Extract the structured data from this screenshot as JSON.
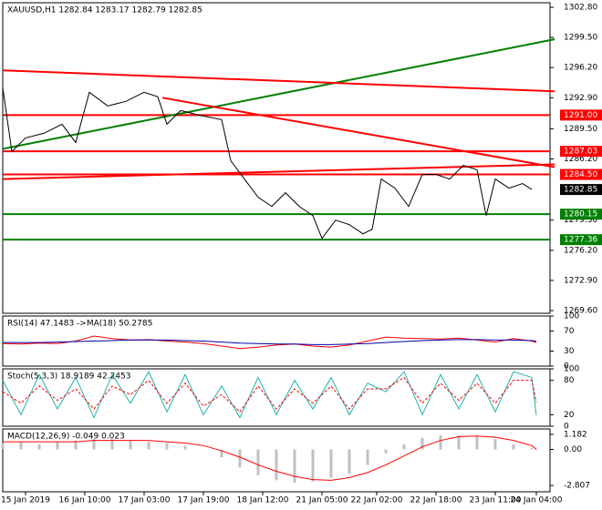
{
  "chart_data": [
    {
      "type": "line",
      "title": "XAUUSD,H1  1282.84 1283.17 1282.79 1282.85",
      "xlim": [
        0,
        120
      ],
      "xticks": [
        {
          "value": 5,
          "label": "15 Jan 2019"
        },
        {
          "value": 18,
          "label": "16 Jan 10:00"
        },
        {
          "value": 31,
          "label": "17 Jan 03:00"
        },
        {
          "value": 44,
          "label": "17 Jan 19:00"
        },
        {
          "value": 57,
          "label": "18 Jan 12:00"
        },
        {
          "value": 70,
          "label": "21 Jan 05:00"
        },
        {
          "value": 82,
          "label": "22 Jan 02:00"
        },
        {
          "value": 95,
          "label": "22 Jan 18:00"
        },
        {
          "value": 108,
          "label": "23 Jan 11:00"
        },
        {
          "value": 117,
          "label": "24 Jan 04:00"
        }
      ],
      "ylim": [
        1269.3,
        1303.3
      ],
      "yticks": [
        {
          "value": 1302.8,
          "label": "1302.80"
        },
        {
          "value": 1299.5,
          "label": "1299.50"
        },
        {
          "value": 1296.2,
          "label": "1296.20"
        },
        {
          "value": 1292.9,
          "label": "1292.90"
        },
        {
          "value": 1289.5,
          "label": "1289.50"
        },
        {
          "value": 1286.2,
          "label": "1286.20"
        },
        {
          "value": 1279.5,
          "label": "1279.50"
        },
        {
          "value": 1276.2,
          "label": "1276.20"
        },
        {
          "value": 1272.9,
          "label": "1272.90"
        },
        {
          "value": 1269.6,
          "label": "1269.60"
        }
      ],
      "series": [
        {
          "name": "Close",
          "color": "#000000",
          "x": [
            0,
            2,
            5,
            9,
            13,
            16,
            19,
            23,
            27,
            31,
            34,
            36,
            39,
            43,
            48,
            50,
            53,
            56,
            59,
            62,
            65,
            68,
            70,
            73,
            76,
            79,
            81,
            83,
            86,
            89,
            92,
            95,
            98,
            101,
            104,
            106,
            108,
            111,
            114,
            116
          ],
          "values": [
            1294,
            1287,
            1288.5,
            1289,
            1290,
            1288,
            1293.5,
            1292,
            1292.5,
            1293.5,
            1293,
            1290,
            1291.5,
            1291,
            1290.5,
            1286,
            1284,
            1282,
            1281,
            1282.5,
            1281,
            1280,
            1277.5,
            1279.5,
            1279,
            1278,
            1278.5,
            1284,
            1283,
            1281,
            1284.5,
            1284.5,
            1284,
            1285.5,
            1285,
            1280,
            1284,
            1283,
            1283.5,
            1282.85
          ]
        }
      ],
      "levels": [
        {
          "value": 1291,
          "label": "1291.00",
          "color": "#ff0000"
        },
        {
          "value": 1287.03,
          "label": "1287.03",
          "color": "#ff0000"
        },
        {
          "value": 1284.5,
          "label": "1284.50",
          "color": "#ff0000"
        },
        {
          "value": 1280.15,
          "label": "1280.15",
          "color": "#008000"
        },
        {
          "value": 1277.36,
          "label": "1277.36",
          "color": "#008000"
        }
      ],
      "trend_lines": [
        {
          "x": [
            0,
            121
          ],
          "y": [
            1287.3,
            1299.3
          ],
          "color": "#008000"
        },
        {
          "x": [
            0,
            121
          ],
          "y": [
            1295.9,
            1293.6
          ],
          "color": "#ff0000"
        },
        {
          "x": [
            35,
            121
          ],
          "y": [
            1292.9,
            1285.3
          ],
          "color": "#ff0000"
        },
        {
          "x": [
            0,
            121
          ],
          "y": [
            1284,
            1285.6
          ],
          "color": "#ff0000"
        }
      ],
      "last_price": {
        "value": 1282.85,
        "label": "1282.85"
      }
    },
    {
      "type": "oscillator",
      "title": "RSI(14) 47.1483 ->MA(18) 50.2785",
      "xlim": [
        0,
        120
      ],
      "ylim": [
        0,
        100
      ],
      "yticks": [
        100,
        70,
        30,
        0
      ],
      "series": [
        {
          "name": "RSI",
          "color": "#ff0000",
          "x": [
            0,
            4,
            8,
            12,
            16,
            20,
            24,
            28,
            32,
            36,
            40,
            44,
            48,
            52,
            56,
            60,
            64,
            68,
            72,
            76,
            80,
            84,
            88,
            92,
            96,
            100,
            104,
            108,
            112,
            116,
            117
          ],
          "values": [
            45,
            44,
            46,
            45,
            50,
            60,
            55,
            52,
            53,
            50,
            48,
            45,
            40,
            35,
            38,
            42,
            44,
            40,
            38,
            42,
            50,
            58,
            56,
            55,
            54,
            56,
            52,
            48,
            55,
            50,
            47
          ]
        },
        {
          "name": "MA",
          "color": "#0000aa",
          "x": [
            0,
            4,
            8,
            12,
            16,
            20,
            24,
            28,
            32,
            36,
            40,
            44,
            48,
            52,
            56,
            60,
            64,
            68,
            72,
            76,
            80,
            84,
            88,
            92,
            96,
            100,
            104,
            108,
            112,
            116,
            117
          ],
          "values": [
            47,
            47,
            47,
            48,
            49,
            50,
            51,
            52,
            52,
            52,
            51,
            50,
            48,
            46,
            45,
            44,
            44,
            43,
            43,
            44,
            45,
            47,
            49,
            51,
            52,
            53,
            53,
            52,
            52,
            51,
            50
          ]
        }
      ]
    },
    {
      "type": "oscillator",
      "title": "Stoch(5,3,3) 18.9189 42.2453",
      "xlim": [
        0,
        120
      ],
      "ylim": [
        0,
        100
      ],
      "yticks": [
        100,
        80,
        20,
        0
      ],
      "series": [
        {
          "name": "Main",
          "color": "#20b2aa",
          "x": [
            0,
            4,
            8,
            12,
            16,
            20,
            24,
            28,
            32,
            36,
            40,
            44,
            48,
            52,
            56,
            60,
            64,
            68,
            72,
            76,
            80,
            84,
            88,
            92,
            96,
            100,
            104,
            108,
            112,
            116,
            117
          ],
          "values": [
            80,
            20,
            90,
            30,
            85,
            15,
            90,
            40,
            95,
            25,
            90,
            20,
            70,
            15,
            85,
            20,
            80,
            30,
            85,
            20,
            75,
            60,
            95,
            20,
            90,
            30,
            90,
            25,
            95,
            85,
            19
          ]
        },
        {
          "name": "Signal",
          "color": "#ff0000",
          "dash": true,
          "x": [
            0,
            4,
            8,
            12,
            16,
            20,
            24,
            28,
            32,
            36,
            40,
            44,
            48,
            52,
            56,
            60,
            64,
            68,
            72,
            76,
            80,
            84,
            88,
            92,
            96,
            100,
            104,
            108,
            112,
            116,
            117
          ],
          "values": [
            60,
            40,
            70,
            45,
            65,
            30,
            70,
            55,
            80,
            40,
            75,
            35,
            55,
            25,
            70,
            30,
            65,
            40,
            70,
            30,
            65,
            65,
            85,
            40,
            75,
            45,
            75,
            40,
            80,
            80,
            42
          ]
        }
      ]
    },
    {
      "type": "macd",
      "title": "MACD(12,26,9) -0.049 0.023",
      "xlim": [
        0,
        120
      ],
      "ylim": [
        -3.3,
        1.6
      ],
      "yticks": [
        1.182,
        {
          "value": 0,
          "label": "0.00"
        },
        -2.807
      ],
      "series": [
        {
          "name": "Histogram",
          "color": "#c0c0c0",
          "x": [
            0,
            4,
            8,
            12,
            16,
            20,
            24,
            28,
            32,
            36,
            40,
            44,
            48,
            52,
            56,
            60,
            64,
            68,
            72,
            76,
            80,
            84,
            88,
            92,
            96,
            100,
            104,
            108,
            112,
            116,
            117
          ],
          "values": [
            0.5,
            0.6,
            0.4,
            0.6,
            0.7,
            0.8,
            0.8,
            0.7,
            0.6,
            0.5,
            0.3,
            0,
            -0.6,
            -1.4,
            -2.0,
            -2.4,
            -2.6,
            -2.5,
            -2.2,
            -1.9,
            -1.2,
            -0.3,
            0.4,
            0.9,
            1.1,
            1.1,
            1.0,
            0.8,
            0.4,
            0.1,
            -0.05
          ]
        },
        {
          "name": "Signal",
          "color": "#ff0000",
          "x": [
            0,
            4,
            8,
            12,
            16,
            20,
            24,
            28,
            32,
            36,
            40,
            44,
            48,
            52,
            56,
            60,
            64,
            68,
            72,
            76,
            80,
            84,
            88,
            92,
            96,
            100,
            104,
            108,
            112,
            116,
            117
          ],
          "values": [
            0.6,
            0.6,
            0.6,
            0.6,
            0.6,
            0.7,
            0.7,
            0.7,
            0.7,
            0.6,
            0.5,
            0.3,
            -0.1,
            -0.6,
            -1.2,
            -1.7,
            -2.1,
            -2.35,
            -2.4,
            -2.2,
            -1.8,
            -1.2,
            -0.5,
            0.2,
            0.7,
            1.0,
            1.05,
            0.95,
            0.7,
            0.3,
            0.02
          ]
        }
      ]
    }
  ]
}
